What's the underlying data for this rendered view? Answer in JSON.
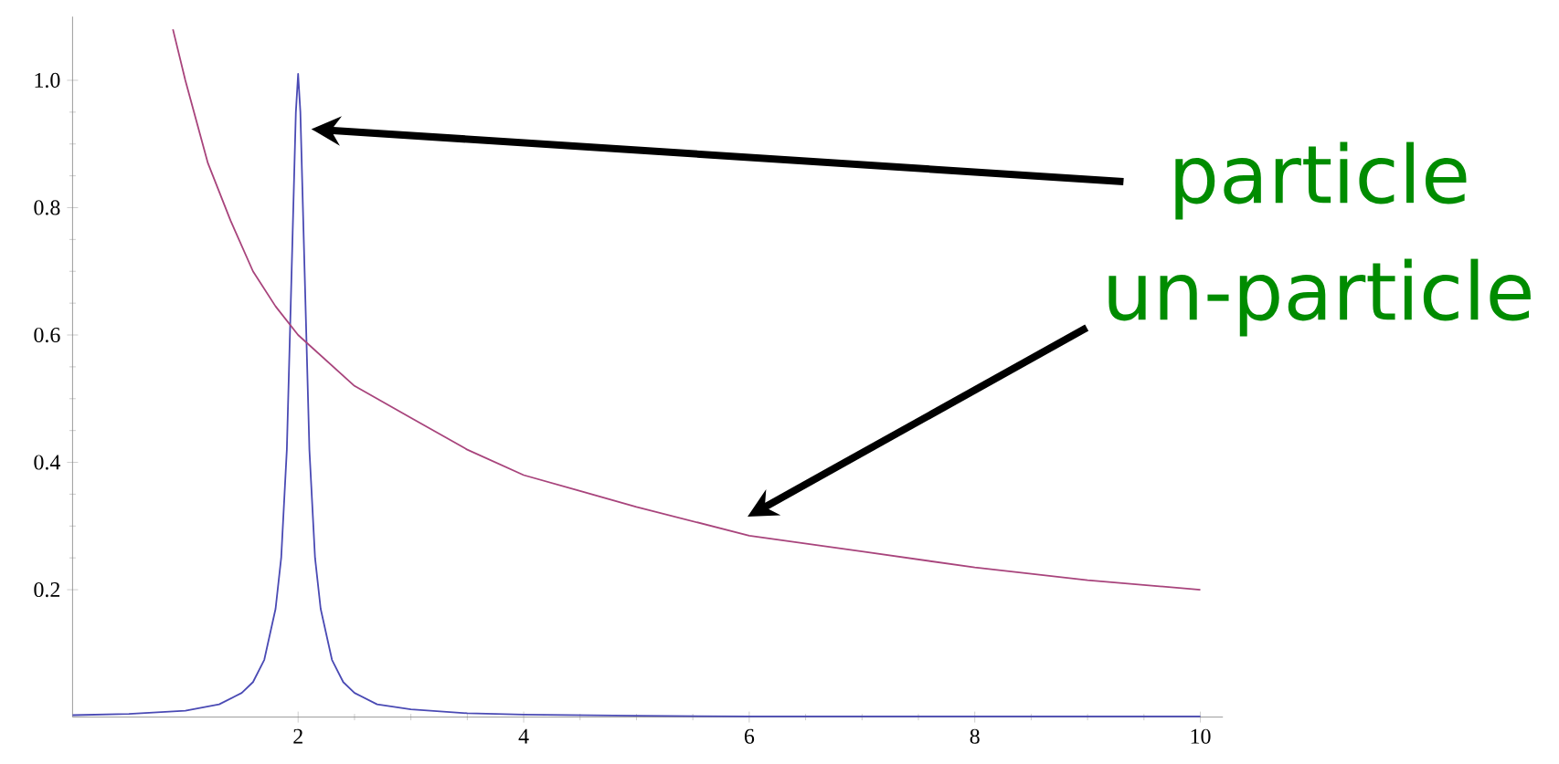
{
  "chart_data": {
    "type": "line",
    "xlim": [
      0,
      10.2
    ],
    "ylim": [
      0,
      1.1
    ],
    "xticks": [
      2,
      4,
      6,
      8,
      10
    ],
    "yticks": [
      0.2,
      0.4,
      0.6,
      0.8,
      {
        "value": 1,
        "label": "1.0"
      }
    ],
    "grid": false,
    "marker": "none",
    "line_style": "solid",
    "series": [
      {
        "color": "#4a4ab4",
        "x": [
          0,
          0.5,
          1,
          1.3,
          1.5,
          1.6,
          1.7,
          1.8,
          1.85,
          1.9,
          1.95,
          1.98,
          2,
          2.02,
          2.05,
          2.1,
          2.15,
          2.2,
          2.3,
          2.4,
          2.5,
          2.7,
          3,
          3.5,
          4,
          5,
          6,
          8,
          10
        ],
        "values": [
          0.003,
          0.005,
          0.01,
          0.02,
          0.038,
          0.055,
          0.09,
          0.17,
          0.25,
          0.42,
          0.75,
          0.95,
          1.01,
          0.95,
          0.75,
          0.42,
          0.25,
          0.17,
          0.09,
          0.055,
          0.038,
          0.02,
          0.012,
          0.006,
          0.004,
          0.002,
          0.001,
          0.001,
          0.001
        ]
      },
      {
        "color": "#a8447c",
        "x": [
          0.89,
          1,
          1.2,
          1.4,
          1.6,
          1.8,
          2,
          2.5,
          3,
          3.5,
          4,
          4.5,
          5,
          6,
          7,
          8,
          9,
          10
        ],
        "values": [
          1.08,
          1.0,
          0.87,
          0.78,
          0.7,
          0.645,
          0.6,
          0.52,
          0.47,
          0.42,
          0.38,
          0.355,
          0.33,
          0.285,
          0.26,
          0.235,
          0.215,
          0.2
        ]
      }
    ],
    "annotations": [
      "particle",
      "un-particle"
    ]
  }
}
